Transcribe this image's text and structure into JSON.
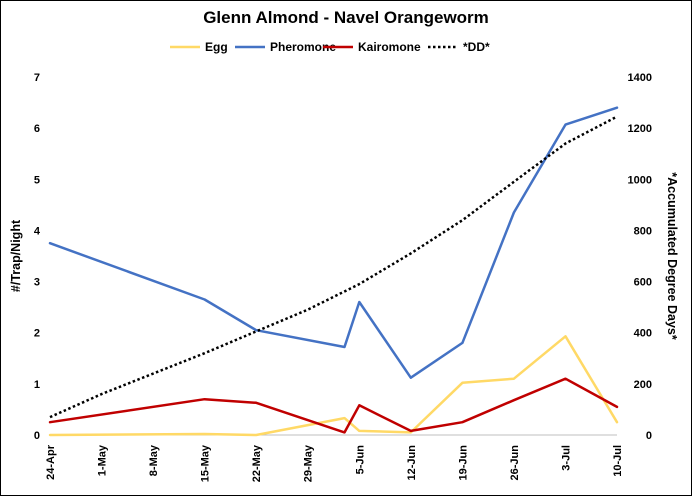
{
  "chart_data": {
    "type": "line",
    "title": "Glenn Almond - Navel Orangeworm",
    "ylabel": "#/Trap/Night",
    "y2label": "*Accumulated Degree Days*",
    "xlabel": "",
    "ylim": [
      0,
      7
    ],
    "y2lim": [
      0,
      1400
    ],
    "yticks": [
      "0",
      "1",
      "2",
      "3",
      "4",
      "5",
      "6",
      "7"
    ],
    "y2ticks": [
      "0",
      "200",
      "400",
      "600",
      "800",
      "1000",
      "1200",
      "1400"
    ],
    "x_ticks": [
      "24-Apr",
      "1-May",
      "8-May",
      "15-May",
      "22-May",
      "29-May",
      "5-Jun",
      "12-Jun",
      "19-Jun",
      "26-Jun",
      "3-Jul",
      "10-Jul"
    ],
    "x_range": [
      "24-Apr",
      "10-Jul"
    ],
    "legend_position": "top",
    "grid": false,
    "series": [
      {
        "name": "Egg",
        "axis": "left",
        "color": "#FFD966",
        "style": "solid",
        "points": [
          [
            "24-Apr",
            0.0
          ],
          [
            "15-May",
            0.02
          ],
          [
            "22-May",
            0.0
          ],
          [
            "3-Jun",
            0.33
          ],
          [
            "5-Jun",
            0.08
          ],
          [
            "12-Jun",
            0.05
          ],
          [
            "19-Jun",
            1.02
          ],
          [
            "26-Jun",
            1.1
          ],
          [
            "3-Jul",
            1.93
          ],
          [
            "10-Jul",
            0.25
          ]
        ]
      },
      {
        "name": "Pheromone",
        "axis": "left",
        "color": "#4472C4",
        "style": "solid",
        "points": [
          [
            "24-Apr",
            3.75
          ],
          [
            "15-May",
            2.65
          ],
          [
            "22-May",
            2.05
          ],
          [
            "3-Jun",
            1.72
          ],
          [
            "5-Jun",
            2.6
          ],
          [
            "12-Jun",
            1.12
          ],
          [
            "19-Jun",
            1.8
          ],
          [
            "26-Jun",
            4.35
          ],
          [
            "3-Jul",
            6.07
          ],
          [
            "10-Jul",
            6.4
          ]
        ]
      },
      {
        "name": "Kairomone",
        "axis": "left",
        "color": "#C00000",
        "style": "solid",
        "points": [
          [
            "24-Apr",
            0.25
          ],
          [
            "15-May",
            0.7
          ],
          [
            "22-May",
            0.63
          ],
          [
            "3-Jun",
            0.05
          ],
          [
            "5-Jun",
            0.58
          ],
          [
            "12-Jun",
            0.08
          ],
          [
            "19-Jun",
            0.25
          ],
          [
            "26-Jun",
            0.68
          ],
          [
            "3-Jul",
            1.1
          ],
          [
            "10-Jul",
            0.55
          ]
        ]
      },
      {
        "name": "*DD*",
        "axis": "right",
        "color": "#000000",
        "style": "dotted",
        "points": [
          [
            "24-Apr",
            70
          ],
          [
            "1-May",
            160
          ],
          [
            "8-May",
            240
          ],
          [
            "15-May",
            320
          ],
          [
            "22-May",
            405
          ],
          [
            "29-May",
            490
          ],
          [
            "5-Jun",
            590
          ],
          [
            "12-Jun",
            710
          ],
          [
            "19-Jun",
            840
          ],
          [
            "26-Jun",
            990
          ],
          [
            "3-Jul",
            1140
          ],
          [
            "10-Jul",
            1245
          ]
        ]
      }
    ]
  }
}
